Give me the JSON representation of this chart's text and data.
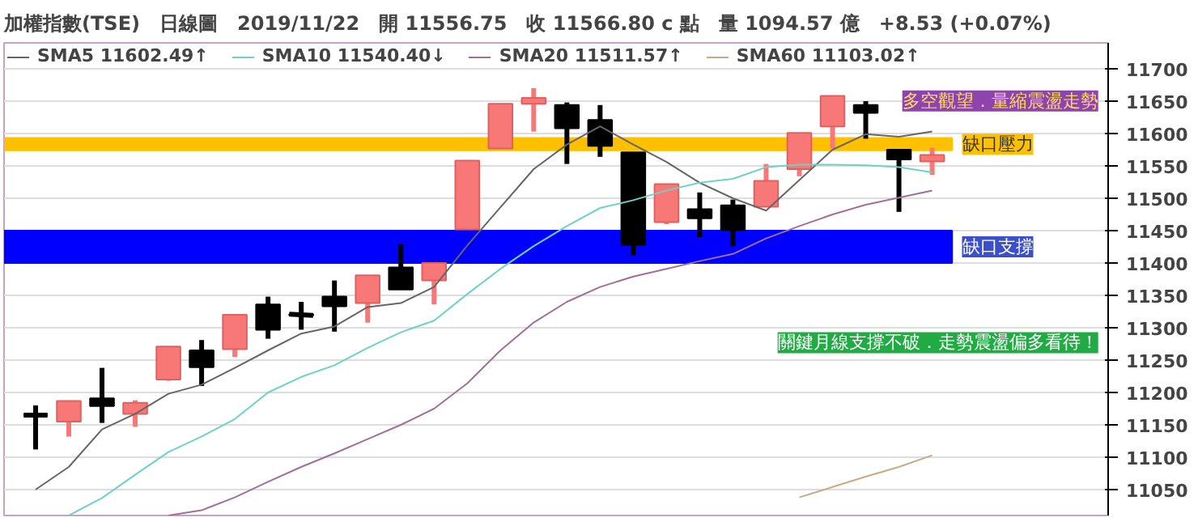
{
  "chart_data": {
    "type": "candlestick",
    "title": "加權指數(TSE)　日線圖　2019/11/22　開 11556.75　收 11566.80 c 點　量 1094.57 億　+8.53 (+0.07%)",
    "categories": [
      null,
      null,
      null,
      null,
      null,
      null,
      null,
      null,
      null,
      null,
      null,
      null,
      null,
      null,
      null,
      null,
      null,
      null,
      null,
      null,
      null,
      null,
      null,
      null,
      null,
      null,
      null,
      null
    ],
    "ohlc": [
      [
        11165,
        11180,
        11112,
        11165
      ],
      [
        11155,
        11187,
        11132,
        11187
      ],
      [
        11191,
        11238,
        11153,
        11179
      ],
      [
        11167,
        11188,
        11147,
        11184
      ],
      [
        11220,
        11271,
        11218,
        11271
      ],
      [
        11265,
        11281,
        11210,
        11239
      ],
      [
        11267,
        11320,
        11255,
        11320
      ],
      [
        11336,
        11348,
        11283,
        11297
      ],
      [
        11321,
        11340,
        11297,
        11319
      ],
      [
        11348,
        11373,
        11294,
        11333
      ],
      [
        11338,
        11381,
        11308,
        11381
      ],
      [
        11393,
        11429,
        11359,
        11359
      ],
      [
        11373,
        11400,
        11336,
        11400
      ],
      [
        11452,
        11559,
        11452,
        11558
      ],
      [
        11577,
        11646,
        11577,
        11646
      ],
      [
        11646,
        11670,
        11603,
        11655
      ],
      [
        11644,
        11648,
        11553,
        11608
      ],
      [
        11621,
        11644,
        11564,
        11581
      ],
      [
        11571,
        11571,
        11412,
        11428
      ],
      [
        11463,
        11522,
        11460,
        11522
      ],
      [
        11483,
        11509,
        11440,
        11469
      ],
      [
        11489,
        11498,
        11426,
        11451
      ],
      [
        11487,
        11553,
        11487,
        11527
      ],
      [
        11545,
        11601,
        11534,
        11601
      ],
      [
        11611,
        11658,
        11577,
        11658
      ],
      [
        11644,
        11650,
        11592,
        11632
      ],
      [
        11575,
        11575,
        11479,
        11560
      ],
      [
        11557,
        11578,
        11536,
        11567
      ]
    ],
    "colors": [
      "#000000",
      "#f87878",
      "#000000",
      "#f87878",
      "#f87878",
      "#000000",
      "#f87878",
      "#000000",
      "#000000",
      "#000000",
      "#f87878",
      "#000000",
      "#f87878",
      "#f87878",
      "#f87878",
      "#f87878",
      "#000000",
      "#000000",
      "#000000",
      "#f87878",
      "#000000",
      "#000000",
      "#f87878",
      "#f87878",
      "#f87878",
      "#000000",
      "#000000",
      "#f87878"
    ],
    "series": [
      {
        "type": "line",
        "name": "SMA5 11602.49↑",
        "color": "#666666",
        "values": [
          11050,
          11085,
          11143,
          11167,
          11198,
          11212,
          11238,
          11265,
          11291,
          11302,
          11332,
          11338,
          11363,
          11427,
          11486,
          11545,
          11583,
          11611,
          11583,
          11556,
          11524,
          11500,
          11481,
          11528,
          11575,
          11599,
          11595,
          11603
        ]
      },
      {
        "type": "line",
        "name": "SMA10 11540.40↓",
        "color": "#6fd3c3",
        "values": [
          null,
          11010,
          11037,
          11073,
          11108,
          11132,
          11159,
          11200,
          11224,
          11242,
          11269,
          11293,
          11311,
          11352,
          11391,
          11426,
          11457,
          11485,
          11497,
          11512,
          11524,
          11530,
          11548,
          11552,
          11552,
          11551,
          11548,
          11540
        ]
      },
      {
        "type": "line",
        "name": "SMA20 11511.57↑",
        "color": "#a0709a",
        "values": [
          null,
          null,
          null,
          null,
          11010,
          11018,
          11038,
          11062,
          11085,
          11106,
          11128,
          11150,
          11175,
          11214,
          11265,
          11308,
          11340,
          11363,
          11379,
          11391,
          11403,
          11414,
          11438,
          11457,
          11475,
          11490,
          11501,
          11512
        ]
      },
      {
        "type": "line",
        "name": "SMA60 11103.02↑",
        "color": "#c8aa88",
        "values": [
          null,
          null,
          null,
          null,
          null,
          null,
          null,
          null,
          null,
          null,
          null,
          null,
          null,
          null,
          null,
          null,
          null,
          null,
          null,
          null,
          null,
          null,
          null,
          11038,
          11054,
          11070,
          11085,
          11103
        ]
      }
    ],
    "ylim": [
      11010,
      11740
    ],
    "yticks": [
      11050,
      11100,
      11150,
      11200,
      11250,
      11300,
      11350,
      11400,
      11450,
      11500,
      11550,
      11600,
      11650,
      11700
    ],
    "grid": "y",
    "legend": "top left",
    "bands": [
      {
        "axis": "y",
        "from": 11400,
        "to": 11450,
        "label": "缺口支撐",
        "color": "#0000ff"
      },
      {
        "axis": "y",
        "from": 11574,
        "to": 11593,
        "label": "缺口壓力",
        "color": "#ffc000"
      }
    ],
    "annotations": [
      "多空觀望．量縮震盪走勢",
      "關鍵月線支撐不破．走勢震盪偏多看待！"
    ]
  }
}
